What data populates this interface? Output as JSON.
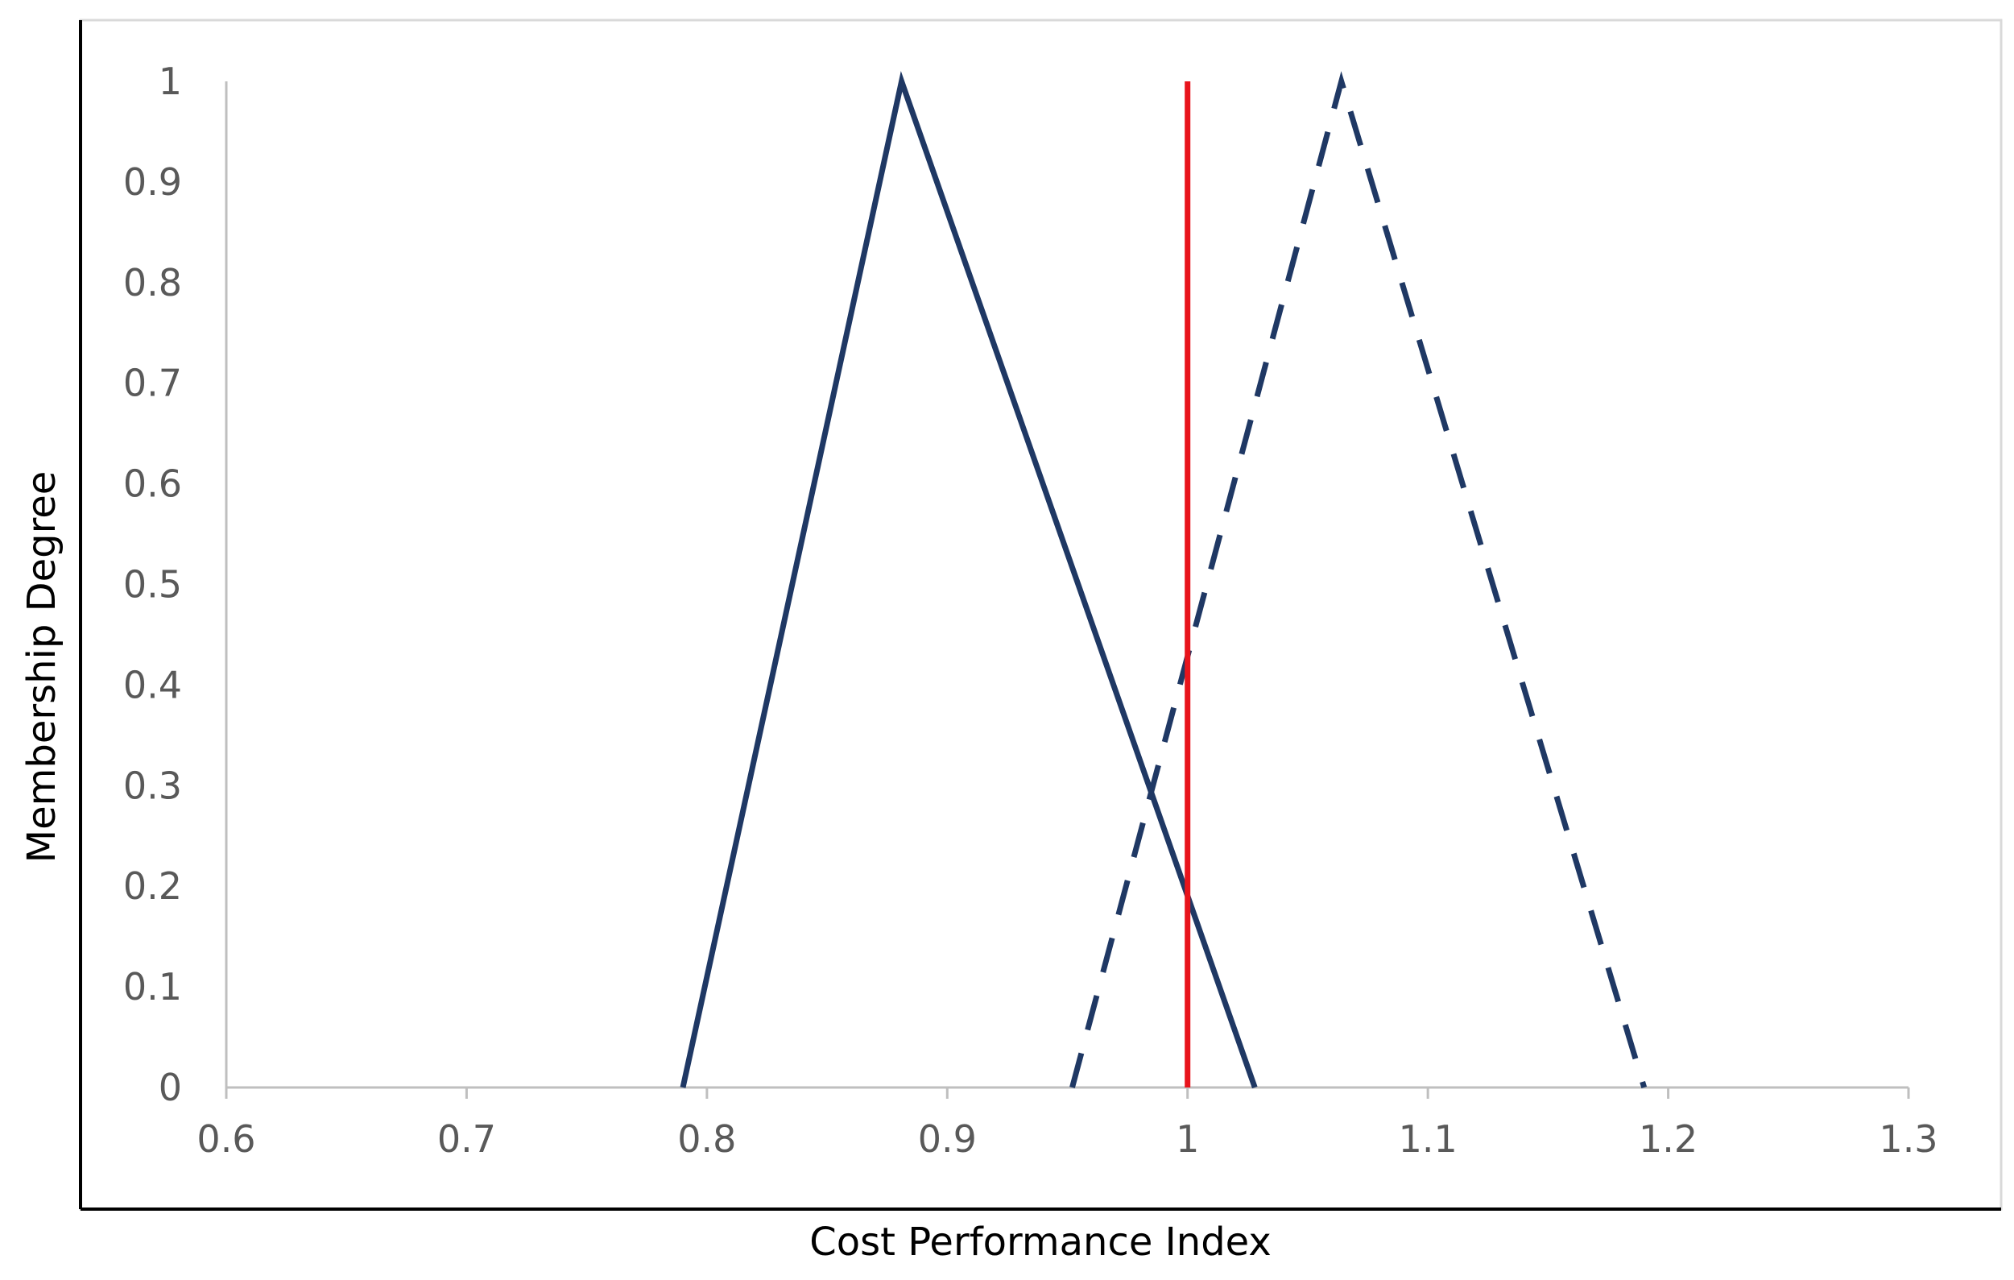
{
  "chart_data": {
    "type": "line",
    "xlabel": "Cost Performance Index",
    "ylabel": "Membership Degree",
    "xlim": [
      0.6,
      1.3
    ],
    "ylim": [
      0,
      1
    ],
    "x_ticks": [
      "0.6",
      "0.7",
      "0.8",
      "0.9",
      "1",
      "1.1",
      "1.2",
      "1.3"
    ],
    "y_ticks": [
      "0",
      "0.1",
      "0.2",
      "0.3",
      "0.4",
      "0.5",
      "0.6",
      "0.7",
      "0.8",
      "0.9",
      "1"
    ],
    "grid": false,
    "legend": "none",
    "series": [
      {
        "style": "solid",
        "color": "#1f3864",
        "points": [
          [
            0.79,
            0
          ],
          [
            0.881,
            1
          ],
          [
            1.028,
            0
          ]
        ]
      },
      {
        "style": "dashed",
        "color": "#1f3864",
        "points": [
          [
            0.952,
            0
          ],
          [
            1.064,
            1
          ],
          [
            1.19,
            0
          ]
        ]
      },
      {
        "style": "solid",
        "color": "#e8141c",
        "points": [
          [
            1.0,
            0
          ],
          [
            1.0,
            1
          ]
        ]
      }
    ]
  }
}
